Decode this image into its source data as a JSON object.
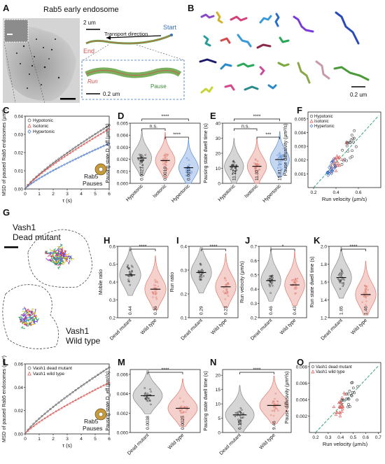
{
  "panels": {
    "A": {
      "letter": "A",
      "title": "Rab5 early endosome",
      "scale_top": "2 um",
      "transport_direction": "Transport direction",
      "start": "Start",
      "end": "End",
      "run": "Run",
      "pause": "Pause",
      "scale_inset": "0.2 um"
    },
    "B": {
      "letter": "B",
      "scale": "0.2 um"
    },
    "C": {
      "letter": "C"
    },
    "D": {
      "letter": "D"
    },
    "E": {
      "letter": "E"
    },
    "F": {
      "letter": "F"
    },
    "G": {
      "letter": "G",
      "label_top_1": "Vash1",
      "label_top_2": "Dead mutant",
      "label_bottom_1": "Vash1",
      "label_bottom_2": "Wild type"
    },
    "H": {
      "letter": "H"
    },
    "I": {
      "letter": "I"
    },
    "J": {
      "letter": "J"
    },
    "K": {
      "letter": "K"
    },
    "L": {
      "letter": "L"
    },
    "M": {
      "letter": "M"
    },
    "N": {
      "letter": "N"
    },
    "O": {
      "letter": "O"
    }
  },
  "chart_data": [
    {
      "id": "C",
      "type": "line",
      "ylabel": "MSD of paused Rab5 endosomes (μm²)",
      "xlabel": "τ (s)",
      "xlim": [
        0,
        6
      ],
      "ylim": [
        0,
        0.04
      ],
      "xticks": [
        "0",
        "1",
        "2",
        "3",
        "4",
        "5",
        "6"
      ],
      "yticks": [
        "0.00",
        "0.01",
        "0.02",
        "0.03",
        "0.04"
      ],
      "legend": [
        "Hypotonic",
        "Isotonic",
        "Hypertonic"
      ],
      "legend_position": "top-left",
      "annotation": [
        "Rab5",
        "Pauses"
      ],
      "colors": [
        "#555555",
        "#d9534f",
        "#3b6fc1"
      ],
      "series": [
        {
          "name": "Hypotonic",
          "marker": "circle",
          "end": 0.035
        },
        {
          "name": "Isotonic",
          "marker": "triangle",
          "end": 0.033
        },
        {
          "name": "Hypertonic",
          "marker": "diamond",
          "end": 0.025
        }
      ]
    },
    {
      "id": "D",
      "type": "violin",
      "ylabel": "Pausing state D_eff (μm²/s)",
      "ylim": [
        0,
        0.005
      ],
      "yticks": [
        "0.000",
        "0.001",
        "0.002",
        "0.003",
        "0.004",
        "0.005"
      ],
      "categories": [
        "Hypotonic",
        "Isotonic",
        "Hypertonic"
      ],
      "medians": [
        0.0021,
        0.0019,
        0.0013
      ],
      "median_labels": [
        "0.0021",
        "0.0019",
        "0.0013"
      ],
      "colors": [
        "#888888",
        "#e07a6e",
        "#5b8dd6"
      ],
      "significance": [
        {
          "from": 0,
          "to": 1,
          "label": "n.s."
        },
        {
          "from": 1,
          "to": 2,
          "label": "****"
        },
        {
          "from": 0,
          "to": 2,
          "label": "****"
        }
      ]
    },
    {
      "id": "E",
      "type": "violin",
      "ylabel": "Pausing state dwell time (s)",
      "ylim": [
        0,
        40
      ],
      "yticks": [
        "0",
        "10",
        "20",
        "30",
        "40"
      ],
      "categories": [
        "Hypotonic",
        "Isotonic",
        "Hypertonic"
      ],
      "medians": [
        11.22,
        11.32,
        15.81
      ],
      "median_labels": [
        "11.22",
        "11.32",
        "15.81"
      ],
      "colors": [
        "#888888",
        "#e07a6e",
        "#5b8dd6"
      ],
      "significance": [
        {
          "from": 0,
          "to": 1,
          "label": "n.s."
        },
        {
          "from": 1,
          "to": 2,
          "label": "***"
        },
        {
          "from": 0,
          "to": 2,
          "label": "****"
        }
      ]
    },
    {
      "id": "F",
      "type": "scatter",
      "ylabel": "Pause diffusivity (μm²/s)",
      "xlabel": "Run velocity (μm/s)",
      "xlim": [
        0.15,
        0.8
      ],
      "ylim": [
        0,
        0.0055
      ],
      "xticks": [
        "0.2",
        "0.4",
        "0.6"
      ],
      "yticks": [
        "0.001",
        "0.002",
        "0.003",
        "0.004",
        "0.005"
      ],
      "legend": [
        "Hypotonic",
        "Isotonic",
        "Hypertonic"
      ],
      "legend_position": "top-left",
      "colors": [
        "#444444",
        "#d9534f",
        "#3b6fc1"
      ]
    },
    {
      "id": "H",
      "type": "violin",
      "ylabel": "Mobile ratio",
      "ylim": [
        0.2,
        0.6
      ],
      "yticks": [
        "0.2",
        "0.3",
        "0.4",
        "0.5",
        "0.6"
      ],
      "categories": [
        "Dead mutant",
        "Wild type"
      ],
      "medians": [
        0.44,
        0.36
      ],
      "median_labels": [
        "0.44",
        "0.36"
      ],
      "colors": [
        "#888888",
        "#e07a6e"
      ],
      "significance": [
        {
          "from": 0,
          "to": 1,
          "label": "****"
        }
      ]
    },
    {
      "id": "I",
      "type": "violin",
      "ylabel": "Run ratio",
      "ylim": [
        0.1,
        0.4
      ],
      "yticks": [
        "0.1",
        "0.2",
        "0.3",
        "0.4"
      ],
      "categories": [
        "Dead mutant",
        "Wild type"
      ],
      "medians": [
        0.29,
        0.23
      ],
      "median_labels": [
        "0.29",
        "0.23"
      ],
      "colors": [
        "#888888",
        "#e07a6e"
      ],
      "significance": [
        {
          "from": 0,
          "to": 1,
          "label": "****"
        }
      ]
    },
    {
      "id": "J",
      "type": "violin",
      "ylabel": "Run velocity (μm/s)",
      "ylim": [
        0.2,
        0.7
      ],
      "yticks": [
        "0.2",
        "0.3",
        "0.4",
        "0.5",
        "0.6",
        "0.7"
      ],
      "categories": [
        "Dead mutant",
        "Wild type"
      ],
      "medians": [
        0.46,
        0.43
      ],
      "median_labels": [
        "0.46",
        "0.43"
      ],
      "colors": [
        "#888888",
        "#e07a6e"
      ],
      "significance": [
        {
          "from": 0,
          "to": 1,
          "label": "*"
        }
      ]
    },
    {
      "id": "K",
      "type": "violin",
      "ylabel": "Run state dwell time (s)",
      "ylim": [
        1.2,
        2.0
      ],
      "yticks": [
        "1.2",
        "1.4",
        "1.6",
        "1.8",
        "2.0"
      ],
      "categories": [
        "Dead mutant",
        "Wild type"
      ],
      "medians": [
        1.65,
        1.46
      ],
      "median_labels": [
        "1.65",
        "1.46"
      ],
      "colors": [
        "#888888",
        "#e07a6e"
      ],
      "significance": [
        {
          "from": 0,
          "to": 1,
          "label": "****"
        }
      ]
    },
    {
      "id": "L",
      "type": "line",
      "ylabel": "MSD of paused Rab5 endosomes (μm²)",
      "xlabel": "τ (s)",
      "xlim": [
        0,
        6
      ],
      "ylim": [
        0,
        0.06
      ],
      "xticks": [
        "0",
        "1",
        "2",
        "3",
        "4",
        "5",
        "6"
      ],
      "yticks": [
        "0.00",
        "0.02",
        "0.04",
        "0.06"
      ],
      "legend": [
        "Vash1 dead mutant",
        "Vash1 wild type"
      ],
      "legend_position": "top-left",
      "annotation": [
        "Rab5",
        "Pauses"
      ],
      "colors": [
        "#555555",
        "#d9534f"
      ],
      "series": [
        {
          "name": "Vash1 dead mutant",
          "marker": "circle",
          "end": 0.057
        },
        {
          "name": "Vash1 wild type",
          "marker": "triangle",
          "end": 0.044
        }
      ]
    },
    {
      "id": "M",
      "type": "violin",
      "ylabel": "Pausing state D_eff (μm²/s)",
      "ylim": [
        0,
        0.0065
      ],
      "yticks": [
        "0.000",
        "0.002",
        "0.004",
        "0.006"
      ],
      "categories": [
        "Dead mutant",
        "Wild type"
      ],
      "medians": [
        0.0038,
        0.0025
      ],
      "median_labels": [
        "0.0038",
        "0.0025"
      ],
      "colors": [
        "#888888",
        "#e07a6e"
      ],
      "significance": [
        {
          "from": 0,
          "to": 1,
          "label": "****"
        }
      ]
    },
    {
      "id": "N",
      "type": "violin",
      "ylabel": "Pausing state dwell time (s)",
      "ylim": [
        0,
        22
      ],
      "yticks": [
        "0",
        "5",
        "10",
        "15",
        "20"
      ],
      "categories": [
        "Dead mutant",
        "Wild type"
      ],
      "medians": [
        6.16,
        9.46
      ],
      "median_labels": [
        "6.16",
        "9.46"
      ],
      "colors": [
        "#888888",
        "#e07a6e"
      ],
      "significance": [
        {
          "from": 0,
          "to": 1,
          "label": "****"
        }
      ]
    },
    {
      "id": "O",
      "type": "scatter",
      "ylabel": "Pause diffusivity (μm²/s)",
      "xlabel": "Run velocity (μm/s)",
      "xlim": [
        0.15,
        0.72
      ],
      "ylim": [
        0,
        0.0085
      ],
      "xticks": [
        "0.2",
        "0.3",
        "0.4",
        "0.5",
        "0.6",
        "0.7"
      ],
      "yticks": [
        "0.002",
        "0.004",
        "0.006",
        "0.008"
      ],
      "legend": [
        "Vash1 dead mutant",
        "Vash1 wild type"
      ],
      "legend_position": "top-left",
      "colors": [
        "#444444",
        "#d9534f"
      ]
    }
  ]
}
